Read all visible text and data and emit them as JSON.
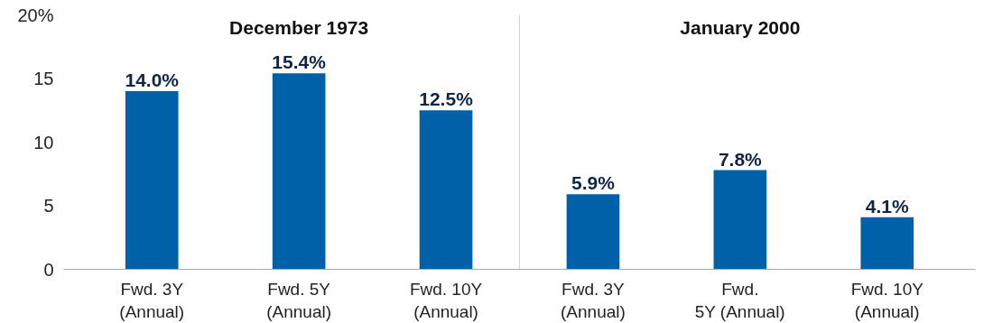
{
  "chart_data": {
    "type": "bar",
    "categories": [
      "Fwd. 3Y\n(Annual)",
      "Fwd. 5Y\n(Annual)",
      "Fwd. 10Y\n(Annual)",
      "Fwd. 3Y\n(Annual)",
      "Fwd.\n5Y (Annual)",
      "Fwd. 10Y\n(Annual)"
    ],
    "values": [
      14.0,
      15.4,
      12.5,
      5.9,
      7.8,
      4.1
    ],
    "color": "#0060a8",
    "value_labels": [
      "14.0%",
      "15.4%",
      "12.5%",
      "5.9%",
      "7.8%",
      "4.1%"
    ],
    "annotations": [
      "December 1973",
      "January 2000"
    ],
    "ylim": [
      0,
      20
    ],
    "yticks": [
      0,
      5,
      10,
      15,
      {
        "value": 20,
        "label": "20%"
      }
    ],
    "grid": false
  }
}
